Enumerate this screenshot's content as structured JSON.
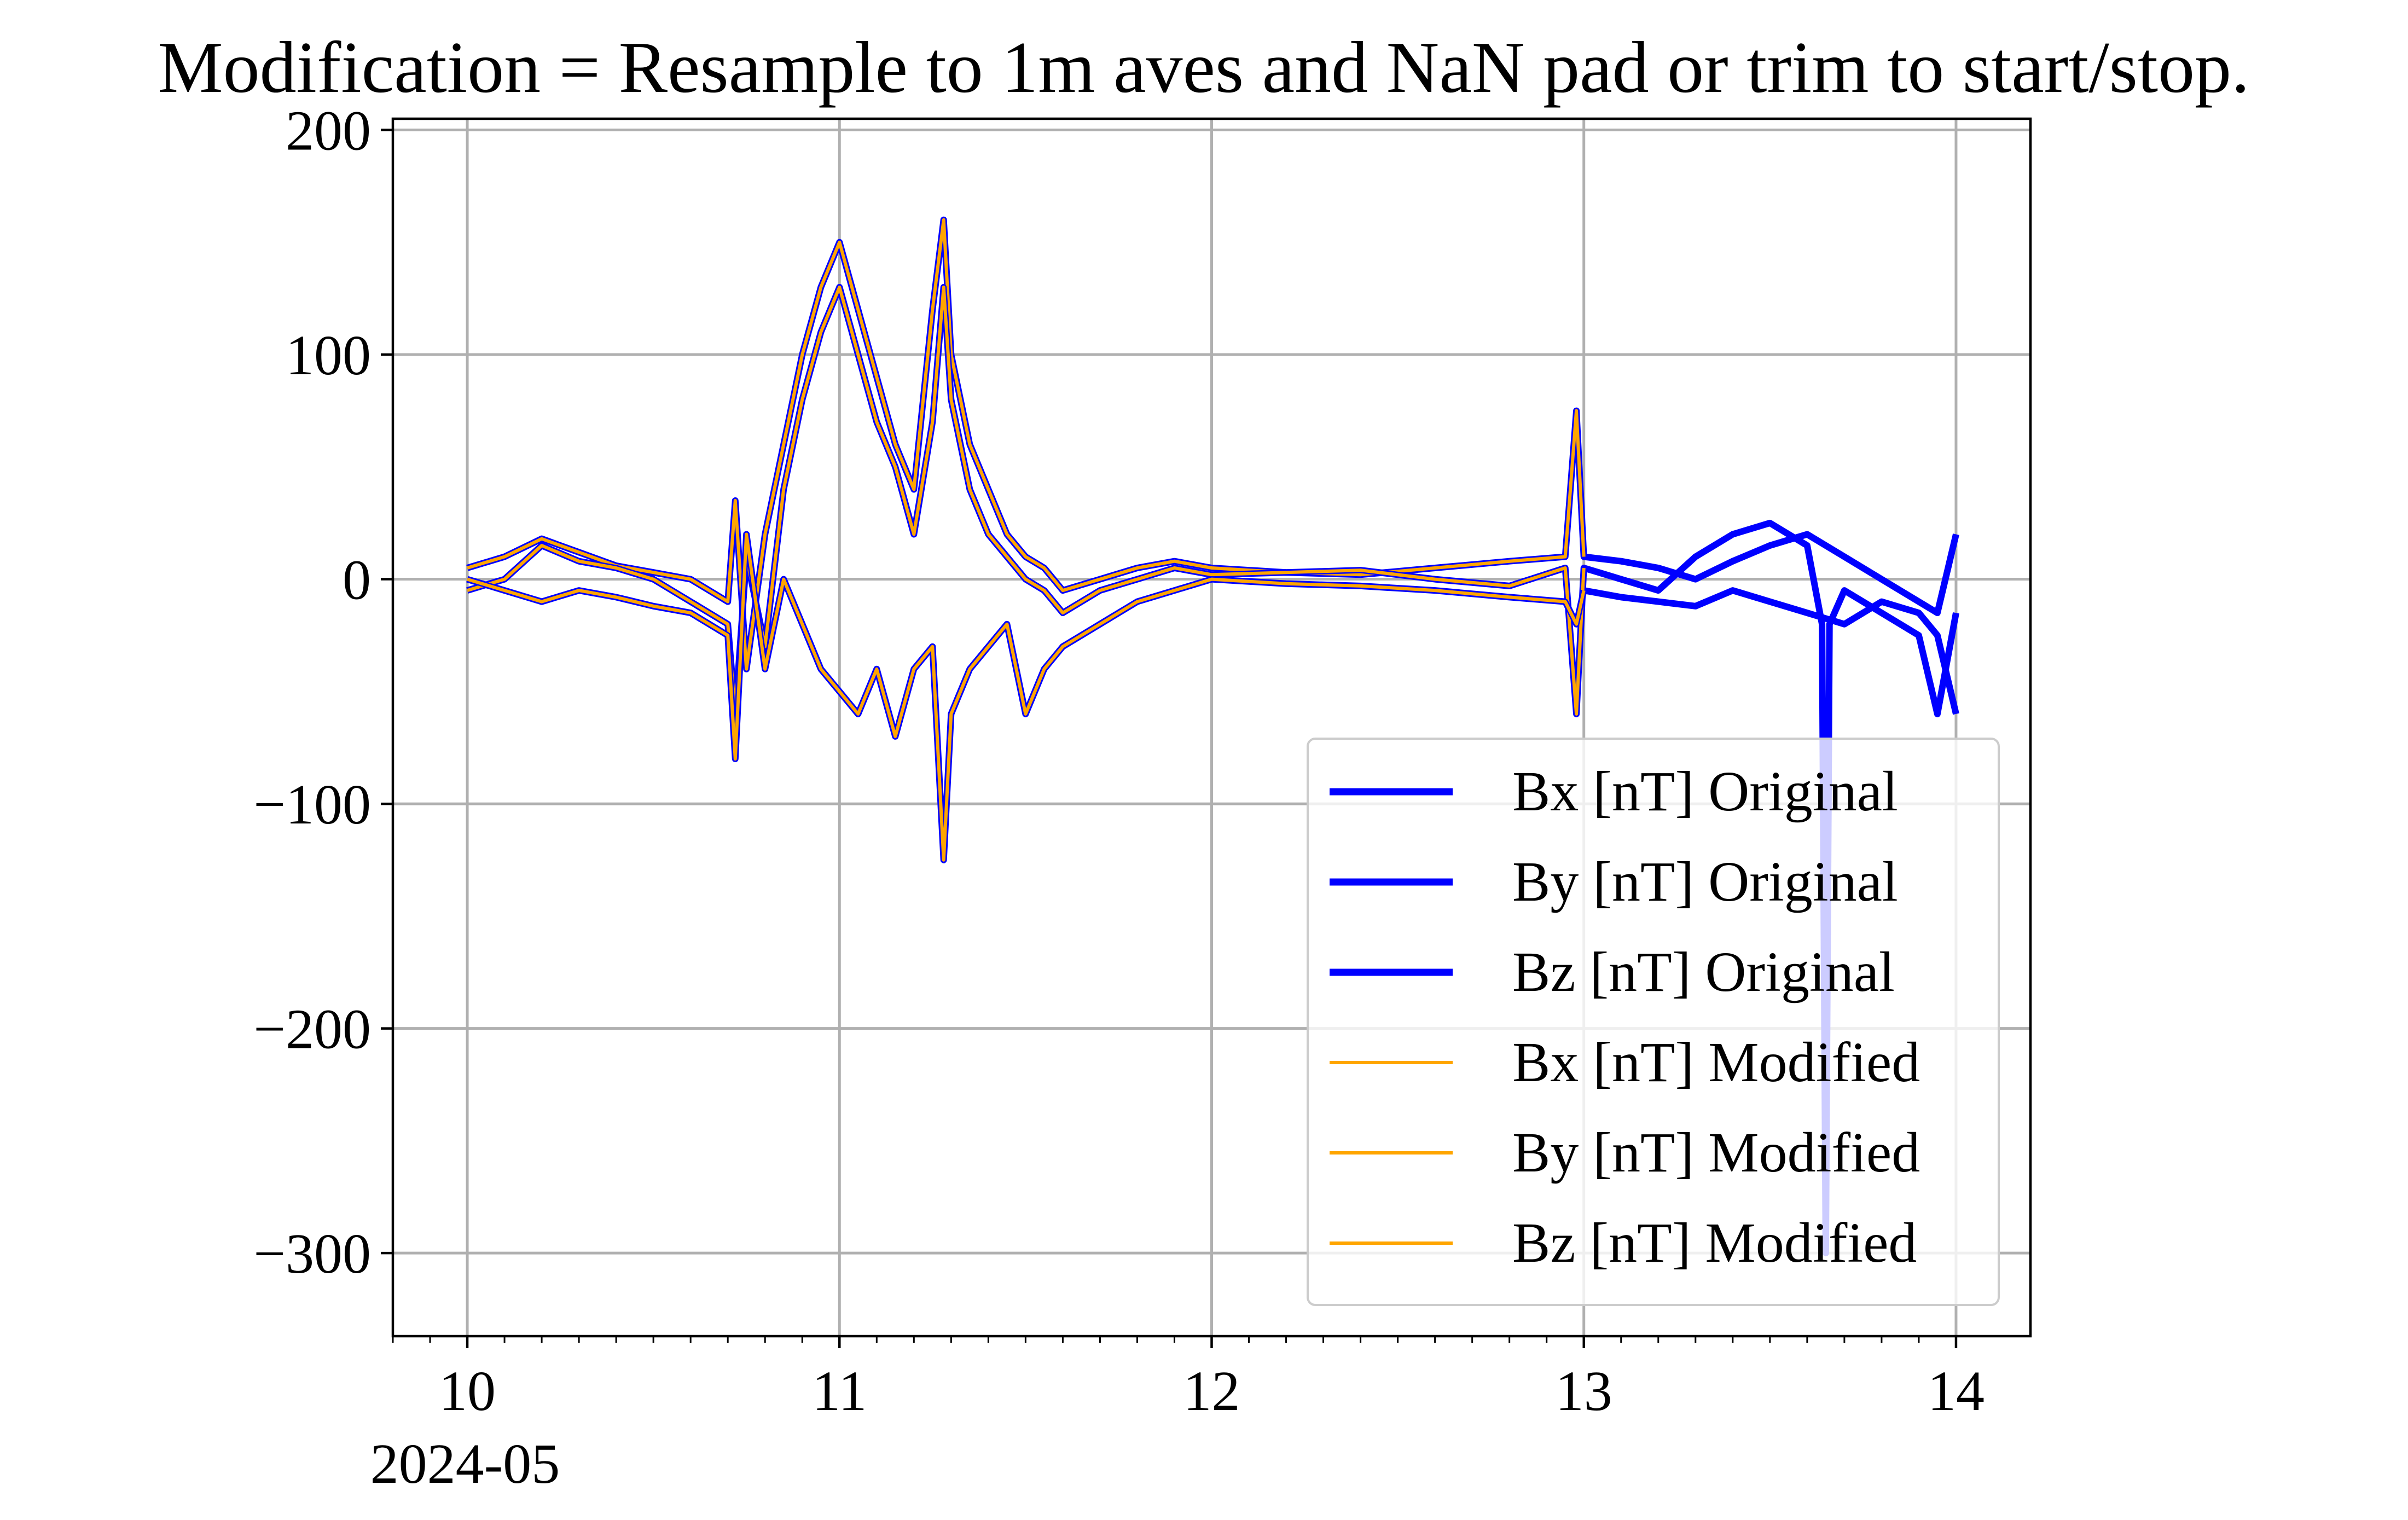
{
  "chart_data": {
    "type": "line",
    "title": "Modification = Resample to 1m aves and NaN pad or trim to start/stop.",
    "xlabel": "",
    "ylabel": "",
    "x_offset_label": "2024-05",
    "x_unit": "day of month (2024-05)",
    "xlim": [
      9.8,
      14.2
    ],
    "ylim": [
      -337,
      205
    ],
    "x_ticks": [
      10,
      11,
      12,
      13,
      14
    ],
    "x_tick_labels": [
      "10",
      "11",
      "12",
      "13",
      "14"
    ],
    "y_ticks": [
      200,
      100,
      0,
      -100,
      -200,
      -300
    ],
    "y_tick_labels": [
      "200",
      "100",
      "0",
      "−100",
      "−200",
      "−300"
    ],
    "grid": true,
    "legend_position": "lower-right",
    "colors": {
      "original": "#0000ff",
      "modified": "#ffa500"
    },
    "series": [
      {
        "name": "Bx [nT] Original",
        "group": "original",
        "x": [
          10.0,
          10.1,
          10.2,
          10.3,
          10.4,
          10.5,
          10.6,
          10.7,
          10.72,
          10.75,
          10.8,
          10.85,
          10.9,
          10.95,
          11.0,
          11.05,
          11.1,
          11.15,
          11.2,
          11.25,
          11.28,
          11.3,
          11.35,
          11.4,
          11.45,
          11.5,
          11.55,
          11.6,
          11.7,
          11.8,
          11.9,
          12.0,
          12.2,
          12.4,
          12.6,
          12.8,
          12.95,
          12.98,
          13.0,
          13.1,
          13.2,
          13.3,
          13.4,
          13.5,
          13.6,
          13.7,
          13.8,
          13.9,
          13.95,
          14.0
        ],
        "values": [
          5,
          10,
          18,
          12,
          6,
          3,
          0,
          -10,
          35,
          -40,
          20,
          60,
          100,
          130,
          150,
          120,
          90,
          60,
          40,
          120,
          160,
          100,
          60,
          40,
          20,
          10,
          5,
          -5,
          0,
          5,
          8,
          5,
          3,
          2,
          5,
          8,
          10,
          75,
          10,
          8,
          5,
          0,
          8,
          15,
          20,
          10,
          0,
          -10,
          -15,
          20
        ]
      },
      {
        "name": "By [nT] Original",
        "group": "original",
        "x": [
          10.0,
          10.1,
          10.2,
          10.3,
          10.4,
          10.5,
          10.6,
          10.7,
          10.72,
          10.75,
          10.8,
          10.85,
          10.9,
          10.95,
          11.0,
          11.05,
          11.1,
          11.15,
          11.2,
          11.25,
          11.28,
          11.3,
          11.35,
          11.4,
          11.45,
          11.5,
          11.55,
          11.6,
          11.7,
          11.8,
          11.9,
          12.0,
          12.2,
          12.4,
          12.6,
          12.8,
          12.95,
          12.98,
          13.0,
          13.1,
          13.2,
          13.3,
          13.4,
          13.5,
          13.6,
          13.64,
          13.65,
          13.66,
          13.7,
          13.8,
          13.9,
          13.95,
          14.0
        ],
        "values": [
          -5,
          0,
          15,
          8,
          5,
          0,
          -10,
          -20,
          -60,
          10,
          -30,
          40,
          80,
          110,
          130,
          100,
          70,
          50,
          20,
          70,
          130,
          80,
          40,
          20,
          10,
          0,
          -5,
          -15,
          -5,
          0,
          5,
          2,
          3,
          4,
          0,
          -3,
          5,
          -60,
          5,
          0,
          -5,
          10,
          20,
          25,
          15,
          -20,
          -300,
          -20,
          -5,
          -15,
          -25,
          -60,
          -15
        ]
      },
      {
        "name": "Bz [nT] Original",
        "group": "original",
        "x": [
          10.0,
          10.1,
          10.2,
          10.3,
          10.4,
          10.5,
          10.6,
          10.7,
          10.72,
          10.75,
          10.8,
          10.85,
          10.9,
          10.95,
          11.0,
          11.05,
          11.1,
          11.15,
          11.2,
          11.25,
          11.28,
          11.3,
          11.35,
          11.4,
          11.45,
          11.5,
          11.55,
          11.6,
          11.7,
          11.8,
          11.9,
          12.0,
          12.2,
          12.4,
          12.6,
          12.8,
          12.95,
          12.98,
          13.0,
          13.1,
          13.2,
          13.3,
          13.4,
          13.5,
          13.6,
          13.7,
          13.8,
          13.9,
          13.95,
          14.0
        ],
        "values": [
          0,
          -5,
          -10,
          -5,
          -8,
          -12,
          -15,
          -25,
          -80,
          20,
          -40,
          0,
          -20,
          -40,
          -50,
          -60,
          -40,
          -70,
          -40,
          -30,
          -125,
          -60,
          -40,
          -30,
          -20,
          -60,
          -40,
          -30,
          -20,
          -10,
          -5,
          0,
          -2,
          -3,
          -5,
          -8,
          -10,
          -20,
          -5,
          -8,
          -10,
          -12,
          -5,
          -10,
          -15,
          -20,
          -10,
          -15,
          -25,
          -60
        ]
      },
      {
        "name": "Bx [nT] Modified",
        "group": "modified",
        "x": [
          10.0,
          10.1,
          10.2,
          10.3,
          10.4,
          10.5,
          10.6,
          10.7,
          10.72,
          10.75,
          10.8,
          10.85,
          10.9,
          10.95,
          11.0,
          11.05,
          11.1,
          11.15,
          11.2,
          11.25,
          11.28,
          11.3,
          11.35,
          11.4,
          11.45,
          11.5,
          11.55,
          11.6,
          11.7,
          11.8,
          11.9,
          12.0,
          12.2,
          12.4,
          12.6,
          12.8,
          12.95,
          12.98,
          13.0
        ],
        "values": [
          5,
          10,
          18,
          12,
          6,
          3,
          0,
          -10,
          35,
          -40,
          20,
          60,
          100,
          130,
          150,
          120,
          90,
          60,
          40,
          120,
          160,
          100,
          60,
          40,
          20,
          10,
          5,
          -5,
          0,
          5,
          8,
          5,
          3,
          2,
          5,
          8,
          10,
          75,
          10
        ]
      },
      {
        "name": "By [nT] Modified",
        "group": "modified",
        "x": [
          10.0,
          10.1,
          10.2,
          10.3,
          10.4,
          10.5,
          10.6,
          10.7,
          10.72,
          10.75,
          10.8,
          10.85,
          10.9,
          10.95,
          11.0,
          11.05,
          11.1,
          11.15,
          11.2,
          11.25,
          11.28,
          11.3,
          11.35,
          11.4,
          11.45,
          11.5,
          11.55,
          11.6,
          11.7,
          11.8,
          11.9,
          12.0,
          12.2,
          12.4,
          12.6,
          12.8,
          12.95,
          12.98,
          13.0
        ],
        "values": [
          -5,
          0,
          15,
          8,
          5,
          0,
          -10,
          -20,
          -60,
          10,
          -30,
          40,
          80,
          110,
          130,
          100,
          70,
          50,
          20,
          70,
          130,
          80,
          40,
          20,
          10,
          0,
          -5,
          -15,
          -5,
          0,
          5,
          2,
          3,
          4,
          0,
          -3,
          5,
          -60,
          5
        ]
      },
      {
        "name": "Bz [nT] Modified",
        "group": "modified",
        "x": [
          10.0,
          10.1,
          10.2,
          10.3,
          10.4,
          10.5,
          10.6,
          10.7,
          10.72,
          10.75,
          10.8,
          10.85,
          10.9,
          10.95,
          11.0,
          11.05,
          11.1,
          11.15,
          11.2,
          11.25,
          11.28,
          11.3,
          11.35,
          11.4,
          11.45,
          11.5,
          11.55,
          11.6,
          11.7,
          11.8,
          11.9,
          12.0,
          12.2,
          12.4,
          12.6,
          12.8,
          12.95,
          12.98,
          13.0
        ],
        "values": [
          0,
          -5,
          -10,
          -5,
          -8,
          -12,
          -15,
          -25,
          -80,
          20,
          -40,
          0,
          -20,
          -40,
          -50,
          -60,
          -40,
          -70,
          -40,
          -30,
          -125,
          -60,
          -40,
          -30,
          -20,
          -60,
          -40,
          -30,
          -20,
          -10,
          -5,
          0,
          -2,
          -3,
          -5,
          -8,
          -10,
          -20,
          -5
        ]
      }
    ]
  }
}
